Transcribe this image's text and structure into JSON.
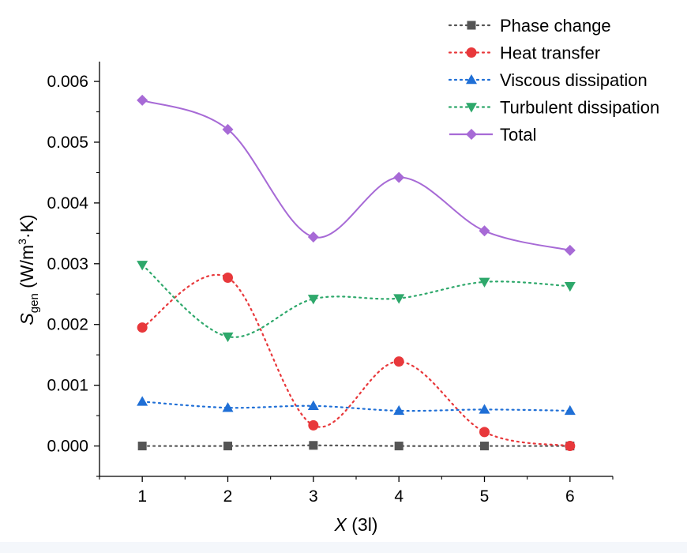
{
  "chart_data": {
    "type": "line",
    "xlabel_var": "X",
    "xlabel_unit": " (3l)",
    "ylabel_main": "S",
    "ylabel_sub": "gen",
    "ylabel_unit_a": " (W/m",
    "ylabel_unit_sup": "3",
    "ylabel_unit_b": "·K)",
    "xlim": [
      0.5,
      6.5
    ],
    "ylim": [
      -0.0005,
      0.0063
    ],
    "x_ticks": [
      1,
      2,
      3,
      4,
      5,
      6
    ],
    "x_tick_labels": [
      "1",
      "2",
      "3",
      "4",
      "5",
      "6"
    ],
    "y_ticks": [
      0,
      0.001,
      0.002,
      0.003,
      0.004,
      0.005,
      0.006
    ],
    "y_tick_labels": [
      "0.000",
      "0.001",
      "0.002",
      "0.003",
      "0.004",
      "0.005",
      "0.006"
    ],
    "legend_position": "top-right",
    "x": [
      1,
      2,
      3,
      4,
      5,
      6
    ],
    "series": [
      {
        "name": "Phase change",
        "marker": "square",
        "color": "#555555",
        "line": "dotted",
        "values": [
          0.0,
          0.0,
          1e-05,
          0.0,
          0.0,
          0.0
        ]
      },
      {
        "name": "Heat transfer",
        "marker": "circle",
        "color": "#e8383b",
        "line": "dotted",
        "values": [
          0.00195,
          0.00277,
          0.00034,
          0.00139,
          0.00023,
          0.0
        ]
      },
      {
        "name": "Viscous dissipation",
        "marker": "triangle-up",
        "color": "#1f6fd6",
        "line": "dotted",
        "values": [
          0.00073,
          0.00063,
          0.00066,
          0.00058,
          0.0006,
          0.00058
        ]
      },
      {
        "name": "Turbulent dissipation",
        "marker": "triangle-down",
        "color": "#2ea86b",
        "line": "dotted",
        "values": [
          0.00298,
          0.0018,
          0.00242,
          0.00243,
          0.0027,
          0.00263
        ]
      },
      {
        "name": "Total",
        "marker": "diamond",
        "color": "#a76ad6",
        "line": "solid",
        "values": [
          0.00569,
          0.00521,
          0.00344,
          0.00442,
          0.00354,
          0.00322
        ]
      }
    ]
  }
}
